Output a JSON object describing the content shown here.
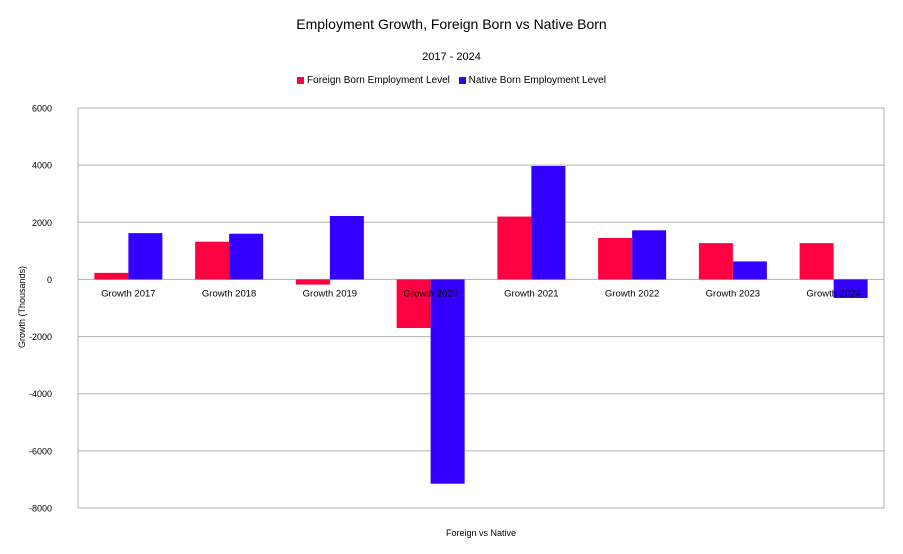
{
  "chart_data": {
    "type": "bar",
    "title": "Employment  Growth, Foreign Born vs Native Born",
    "subtitle": "2017 - 2024",
    "xlabel": "Foreign vs Native",
    "ylabel": "Growth (Thousands)",
    "ylim": [
      -8000,
      6000
    ],
    "yticks": [
      6000,
      4000,
      2000,
      0,
      -2000,
      -4000,
      -6000,
      -8000
    ],
    "ytick_labels": [
      "6000",
      "4000",
      "2000",
      "0",
      "-2000",
      "-4000",
      "-6000",
      "-8000"
    ],
    "grid": true,
    "legend_position": "top",
    "categories": [
      "Growth 2017",
      "Growth 2018",
      "Growth 2019",
      "Growth 2020",
      "Growth 2021",
      "Growth 2022",
      "Growth 2023",
      "Growth 2024"
    ],
    "series": [
      {
        "name": "Foreign Born Employment Level",
        "color": "#ff0040",
        "values": [
          230,
          1320,
          -180,
          -1700,
          2200,
          1450,
          1270,
          1270
        ]
      },
      {
        "name": "Native Born Employment Level",
        "color": "#3300ff",
        "values": [
          1620,
          1600,
          2220,
          -7150,
          3970,
          1720,
          630,
          -650
        ]
      }
    ]
  }
}
